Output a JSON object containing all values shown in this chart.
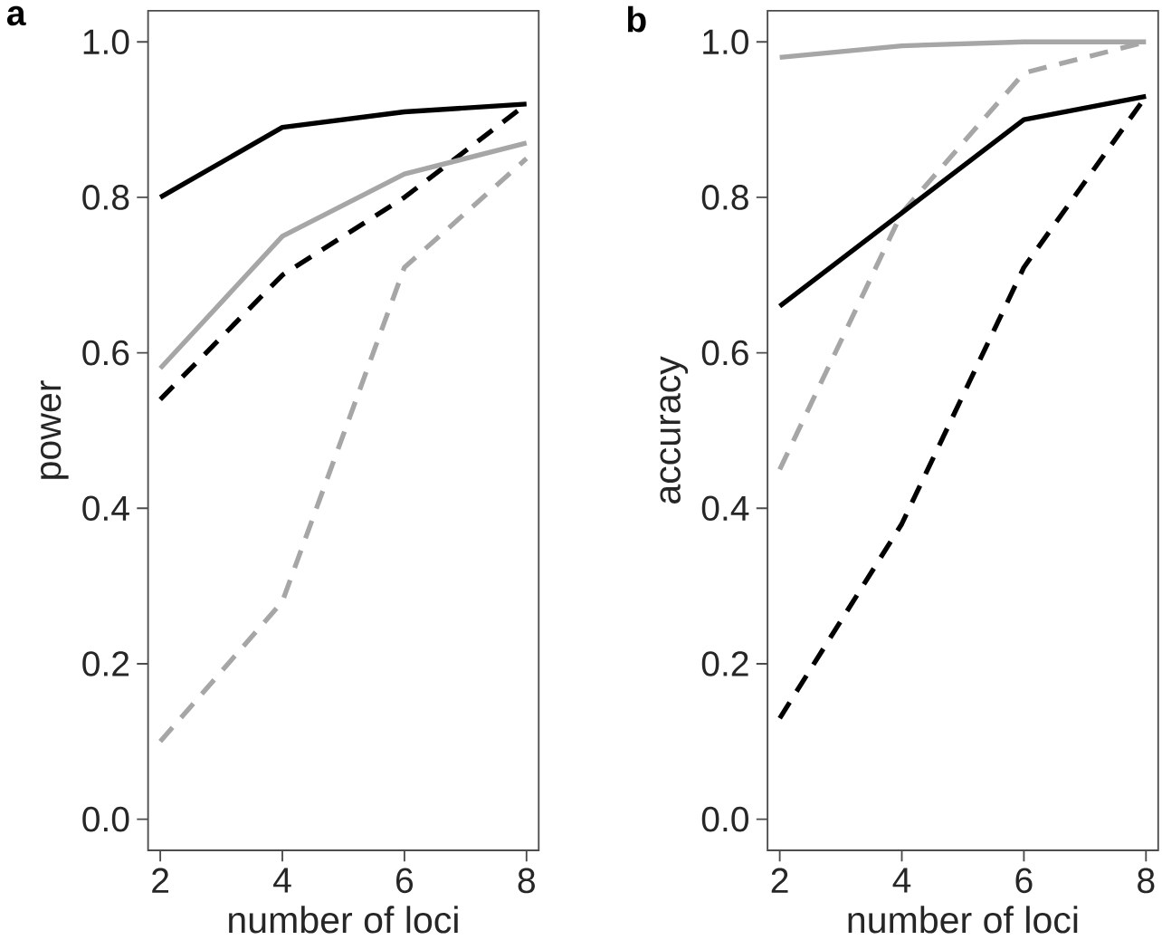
{
  "chart_data": [
    {
      "type": "line",
      "title": "a",
      "xlabel": "number of loci",
      "ylabel": "power",
      "x": [
        2,
        4,
        6,
        8
      ],
      "series": [
        {
          "color": "#000000",
          "line_style": "solid",
          "values": [
            0.8,
            0.89,
            0.91,
            0.92
          ]
        },
        {
          "color": "#000000",
          "line_style": "dashed",
          "values": [
            0.54,
            0.7,
            0.8,
            0.92
          ]
        },
        {
          "color": "#a6a6a6",
          "line_style": "solid",
          "values": [
            0.58,
            0.75,
            0.83,
            0.87
          ]
        },
        {
          "color": "#a6a6a6",
          "line_style": "dashed",
          "values": [
            0.1,
            0.28,
            0.71,
            0.85
          ]
        }
      ],
      "xlim": [
        1.8,
        8.2
      ],
      "ylim": [
        -0.04,
        1.04
      ],
      "xticks": [
        2,
        4,
        6,
        8
      ],
      "yticks": [
        {
          "value": 0,
          "label": "0.0"
        },
        {
          "value": 0.2,
          "label": "0.2"
        },
        {
          "value": 0.4,
          "label": "0.4"
        },
        {
          "value": 0.6,
          "label": "0.6"
        },
        {
          "value": 0.8,
          "label": "0.8"
        },
        {
          "value": 1.0,
          "label": "1.0"
        }
      ],
      "grid": false
    },
    {
      "type": "line",
      "title": "b",
      "xlabel": "number of loci",
      "ylabel": "accuracy",
      "x": [
        2,
        4,
        6,
        8
      ],
      "series": [
        {
          "color": "#a6a6a6",
          "line_style": "solid",
          "values": [
            0.98,
            0.995,
            1.0,
            1.0
          ]
        },
        {
          "color": "#a6a6a6",
          "line_style": "dashed",
          "values": [
            0.45,
            0.78,
            0.96,
            1.0
          ]
        },
        {
          "color": "#000000",
          "line_style": "solid",
          "values": [
            0.66,
            0.78,
            0.9,
            0.93
          ]
        },
        {
          "color": "#000000",
          "line_style": "dashed",
          "values": [
            0.13,
            0.38,
            0.71,
            0.93
          ]
        }
      ],
      "xlim": [
        1.8,
        8.2
      ],
      "ylim": [
        -0.04,
        1.04
      ],
      "xticks": [
        2,
        4,
        6,
        8
      ],
      "yticks": [
        {
          "value": 0,
          "label": "0.0"
        },
        {
          "value": 0.2,
          "label": "0.2"
        },
        {
          "value": 0.4,
          "label": "0.4"
        },
        {
          "value": 0.6,
          "label": "0.6"
        },
        {
          "value": 0.8,
          "label": "0.8"
        },
        {
          "value": 1.0,
          "label": "1.0"
        }
      ],
      "grid": false
    }
  ]
}
